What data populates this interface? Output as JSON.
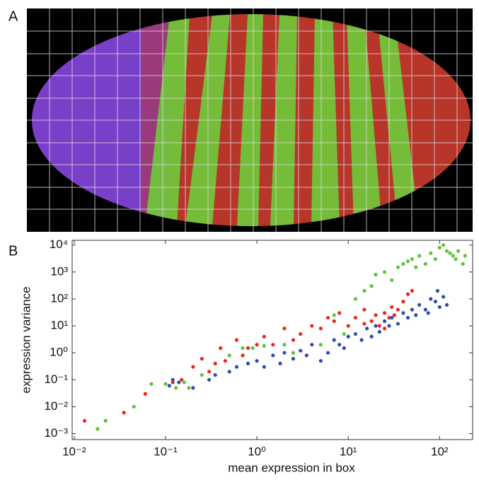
{
  "panel_labels": [
    "A",
    "B"
  ],
  "chart_data": {
    "type": "scatter",
    "xlabel": "mean expression in box",
    "ylabel": "expression variance",
    "xscale": "log",
    "yscale": "log",
    "xlim": [
      0.0095,
      230
    ],
    "ylim": [
      0.0006,
      15000
    ],
    "xticks": [
      {
        "value": 0.01,
        "label": "10⁻²"
      },
      {
        "value": 0.1,
        "label": "10⁻¹"
      },
      {
        "value": 1,
        "label": "10⁰"
      },
      {
        "value": 10,
        "label": "10¹"
      },
      {
        "value": 100,
        "label": "10²"
      }
    ],
    "yticks": [
      {
        "value": 0.001,
        "label": "10⁻³"
      },
      {
        "value": 0.01,
        "label": "10⁻²"
      },
      {
        "value": 0.1,
        "label": "10⁻¹"
      },
      {
        "value": 1,
        "label": "10⁰"
      },
      {
        "value": 10,
        "label": "10¹"
      },
      {
        "value": 100,
        "label": "10²"
      },
      {
        "value": 1000,
        "label": "10³"
      },
      {
        "value": 10000,
        "label": "10⁴"
      }
    ],
    "series": [
      {
        "color": "#e8281e",
        "x": [
          0.013,
          0.035,
          0.06,
          0.12,
          0.15,
          0.2,
          0.25,
          0.3,
          0.35,
          0.4,
          0.45,
          0.6,
          0.7,
          0.8,
          1,
          1.2,
          1.5,
          2,
          2.5,
          3,
          4,
          5,
          6,
          7,
          8,
          10,
          12,
          15,
          18,
          20,
          22,
          25,
          28,
          30,
          35,
          40,
          45,
          50,
          25,
          15,
          32
        ],
        "values": [
          0.003,
          0.006,
          0.03,
          0.08,
          0.1,
          0.3,
          0.6,
          0.2,
          0.4,
          1.5,
          0.5,
          3,
          0.8,
          1.5,
          2,
          4,
          2,
          8,
          3,
          5,
          10,
          8,
          20,
          15,
          30,
          10,
          20,
          40,
          15,
          25,
          10,
          30,
          20,
          50,
          40,
          80,
          150,
          200,
          8,
          12,
          25
        ]
      },
      {
        "color": "#5cc43a",
        "x": [
          0.018,
          0.022,
          0.045,
          0.07,
          0.1,
          0.13,
          0.16,
          0.18,
          0.25,
          0.5,
          0.7,
          0.9,
          1.2,
          2,
          2.5,
          5,
          7,
          9,
          12,
          15,
          18,
          20,
          25,
          30,
          35,
          40,
          45,
          50,
          55,
          60,
          70,
          80,
          90,
          100,
          110,
          120,
          130,
          140,
          150,
          160,
          180,
          190
        ],
        "values": [
          0.0015,
          0.003,
          0.01,
          0.07,
          0.07,
          0.05,
          0.08,
          0.05,
          0.15,
          0.8,
          1.5,
          1.5,
          1.8,
          2,
          1,
          2,
          25,
          5,
          100,
          200,
          300,
          800,
          1000,
          500,
          1500,
          2000,
          2500,
          3000,
          1500,
          4000,
          2000,
          5000,
          3000,
          8000,
          10000,
          6000,
          5000,
          4000,
          3000,
          6000,
          2000,
          4000
        ]
      },
      {
        "color": "#2d4fa8",
        "x": [
          0.11,
          0.12,
          0.14,
          0.2,
          0.3,
          0.35,
          0.5,
          0.6,
          0.8,
          1,
          1.2,
          1.5,
          1.8,
          2,
          2.5,
          3,
          3.5,
          4,
          5,
          6,
          7,
          8,
          9,
          10,
          12,
          14,
          16,
          18,
          20,
          22,
          25,
          28,
          30,
          35,
          40,
          45,
          50,
          55,
          60,
          70,
          80,
          90,
          100,
          110,
          120,
          95,
          75
        ],
        "values": [
          0.06,
          0.1,
          0.08,
          0.05,
          0.1,
          0.15,
          0.2,
          0.3,
          0.4,
          0.5,
          0.3,
          0.8,
          0.4,
          1,
          0.6,
          1.2,
          0.8,
          2,
          0.5,
          1,
          3,
          2,
          1.5,
          4,
          5,
          3,
          8,
          4,
          10,
          6,
          15,
          10,
          20,
          12,
          30,
          20,
          40,
          25,
          60,
          40,
          100,
          80,
          50,
          120,
          60,
          200,
          30
        ]
      }
    ]
  }
}
